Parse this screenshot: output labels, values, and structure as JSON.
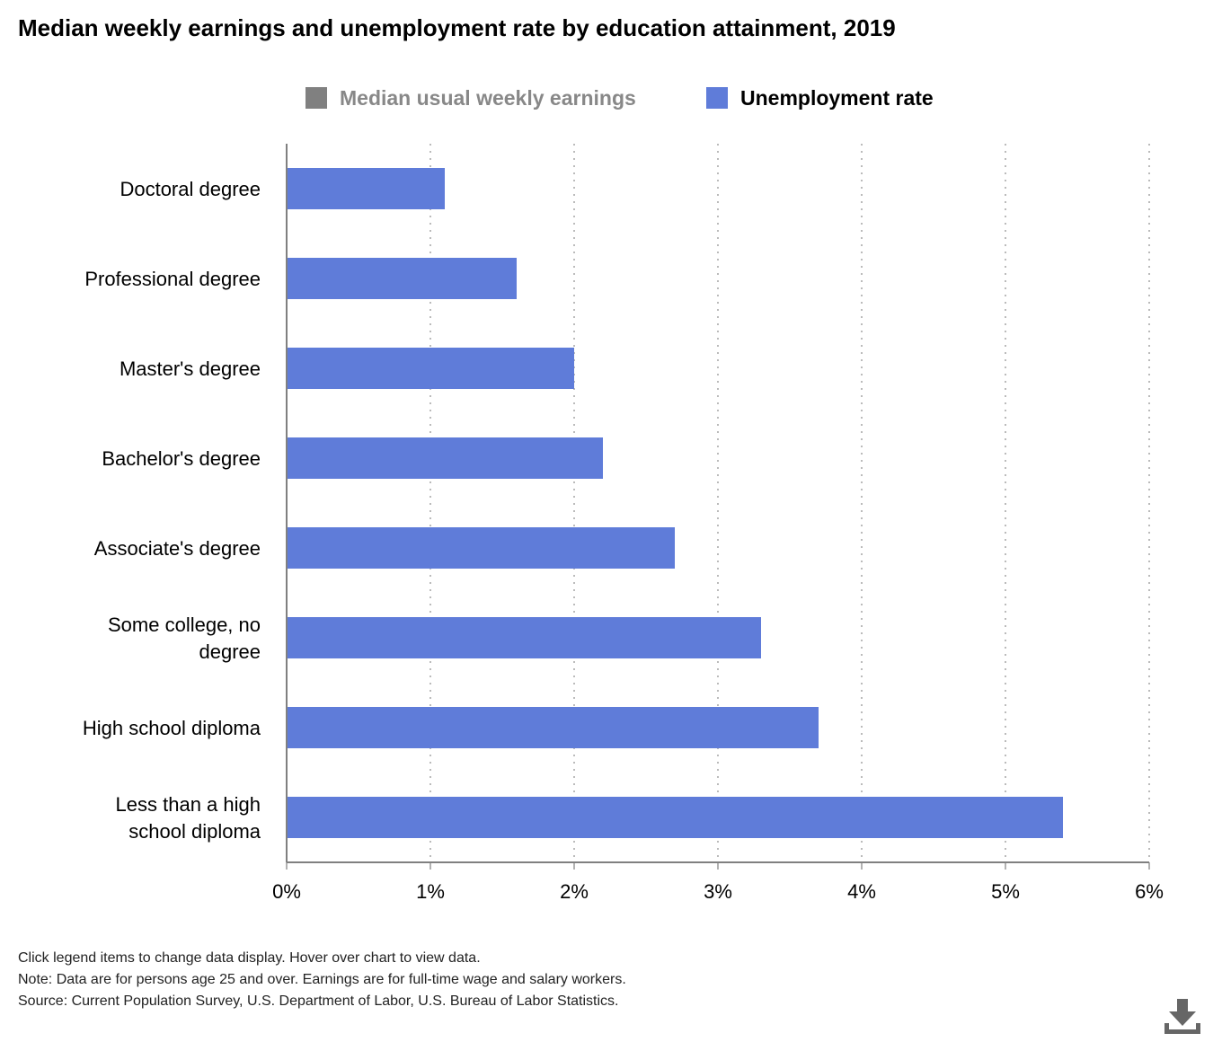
{
  "title": "Median weekly earnings and unemployment rate by education attainment, 2019",
  "legend": {
    "items": [
      {
        "label": "Median usual weekly earnings",
        "color": "#808080",
        "active": false
      },
      {
        "label": "Unemployment rate",
        "color": "#5f7cd9",
        "active": true
      }
    ]
  },
  "chart_data": {
    "type": "bar",
    "orientation": "horizontal",
    "categories": [
      "Doctoral degree",
      "Professional degree",
      "Master's degree",
      "Bachelor's degree",
      "Associate's degree",
      "Some college, no degree",
      "High school diploma",
      "Less than a high school diploma"
    ],
    "series": [
      {
        "name": "Unemployment rate",
        "color": "#5f7cd9",
        "values": [
          1.1,
          1.6,
          2.0,
          2.2,
          2.7,
          3.3,
          3.7,
          5.4
        ]
      }
    ],
    "xlim": [
      0,
      6
    ],
    "xticks": [
      {
        "value": 0,
        "label": "0%"
      },
      {
        "value": 1,
        "label": "1%"
      },
      {
        "value": 2,
        "label": "2%"
      },
      {
        "value": 3,
        "label": "3%"
      },
      {
        "value": 4,
        "label": "4%"
      },
      {
        "value": 5,
        "label": "5%"
      },
      {
        "value": 6,
        "label": "6%"
      }
    ],
    "grid": "vertical dotted",
    "legend_position": "top-center"
  },
  "notes": {
    "hint": "Click legend items to change data display. Hover over chart to view data.",
    "note": "Note: Data are for persons age 25 and over. Earnings are for full-time wage and salary workers.",
    "source": "Source: Current Population Survey, U.S. Department of Labor, U.S. Bureau of Labor Statistics."
  },
  "download": {
    "icon": "download-icon"
  }
}
